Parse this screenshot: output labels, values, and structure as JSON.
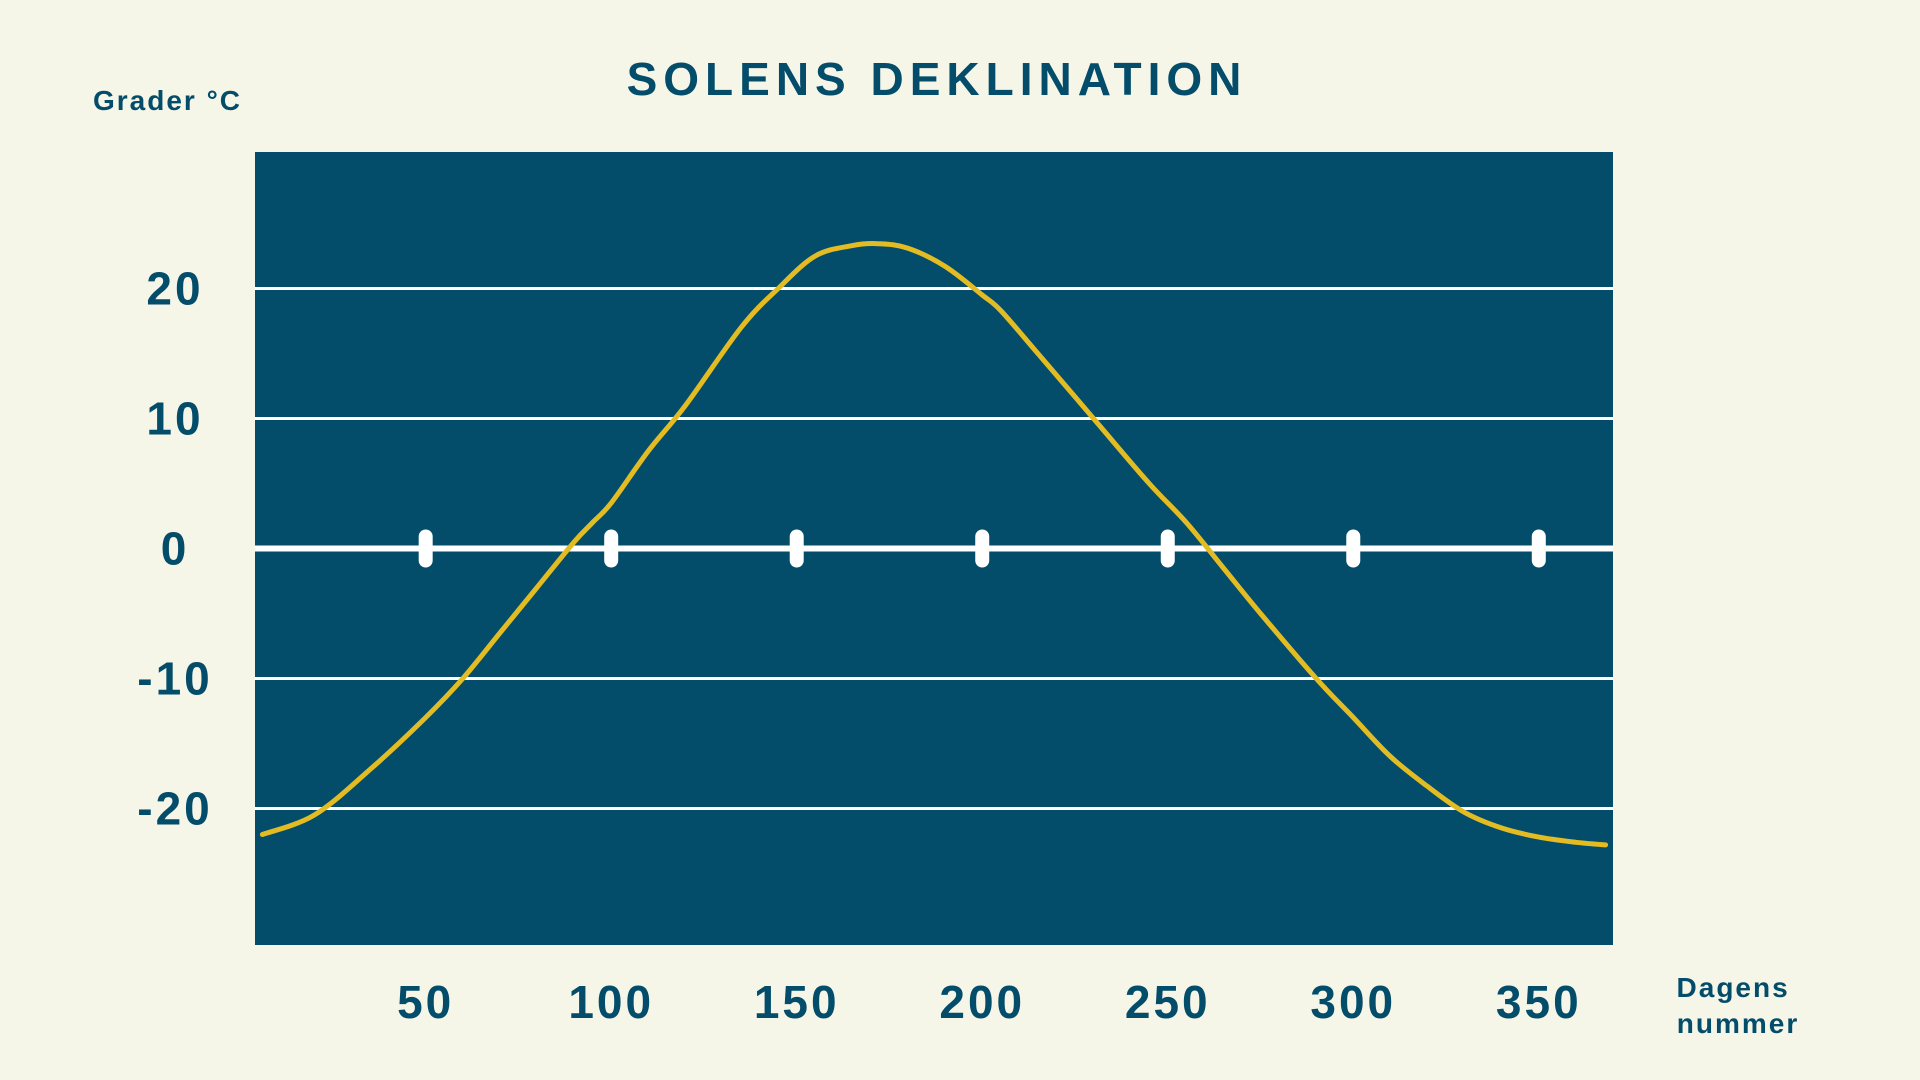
{
  "colors": {
    "background": "#F5F5E8",
    "plot_background": "#034C6A",
    "text": "#034C6A",
    "grid": "#FFFFFF",
    "series": "#E3BB22",
    "markers": "#FFFFFF"
  },
  "chart_data": {
    "type": "line",
    "title": "SOLENS DEKLINATION",
    "ylabel": "Grader °C",
    "xlabel_lines": [
      "Dagens",
      "nummer"
    ],
    "xlim": [
      4,
      370
    ],
    "ylim": [
      -30.5,
      30.5
    ],
    "x_ticks": [
      {
        "value": 50,
        "label": "50"
      },
      {
        "value": 100,
        "label": "100"
      },
      {
        "value": 150,
        "label": "150"
      },
      {
        "value": 200,
        "label": "200"
      },
      {
        "value": 250,
        "label": "250"
      },
      {
        "value": 300,
        "label": "300"
      },
      {
        "value": 350,
        "label": "350"
      }
    ],
    "y_ticks": [
      {
        "value": 20,
        "label": "20"
      },
      {
        "value": 10,
        "label": "10"
      },
      {
        "value": 0,
        "label": "0"
      },
      {
        "value": -10,
        "label": "-10"
      },
      {
        "value": -20,
        "label": "-20"
      }
    ],
    "grid": true,
    "legend": "none",
    "series": [
      {
        "x": [
          6,
          20,
          35,
          50,
          60,
          70,
          80,
          90,
          95,
          100,
          110,
          120,
          135,
          145,
          155,
          165,
          172,
          180,
          190,
          200,
          205,
          215,
          230,
          245,
          255,
          265,
          275,
          290,
          300,
          310,
          320,
          330,
          340,
          350,
          360,
          368
        ],
        "y": [
          -22.0,
          -20.5,
          -17.0,
          -13.0,
          -10.0,
          -6.5,
          -3.0,
          0.5,
          2.0,
          3.5,
          7.5,
          11.0,
          17.0,
          20.0,
          22.5,
          23.3,
          23.45,
          23.1,
          21.7,
          19.5,
          18.3,
          15.0,
          10.0,
          5.0,
          2.0,
          -1.5,
          -5.0,
          -10.0,
          -13.0,
          -16.0,
          -18.3,
          -20.3,
          -21.5,
          -22.2,
          -22.6,
          -22.8
        ]
      }
    ],
    "zero_markers_x": [
      50,
      100,
      150,
      200,
      250,
      300,
      350
    ]
  }
}
